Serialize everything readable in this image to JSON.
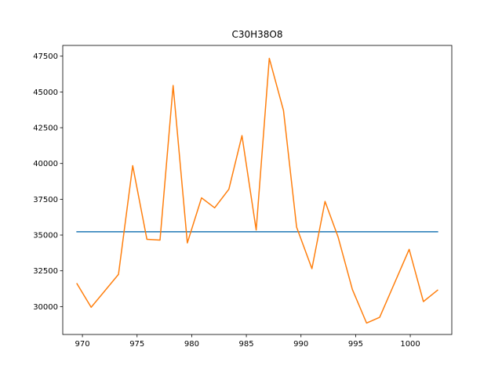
{
  "chart_data": {
    "type": "line",
    "title": "C30H38O8",
    "xlabel": "",
    "ylabel": "",
    "xlim": [
      968.2,
      1003.8
    ],
    "ylim": [
      28050,
      48250
    ],
    "xticks": [
      970,
      975,
      980,
      985,
      990,
      995,
      1000
    ],
    "yticks": [
      30000,
      32500,
      35000,
      37500,
      40000,
      42500,
      45000,
      47500
    ],
    "grid": false,
    "series": [
      {
        "color": "#1f77b4",
        "x": [
          969.5,
          1002.5
        ],
        "y": [
          35230,
          35230
        ]
      },
      {
        "color": "#ff7f0e",
        "x": [
          969.5,
          970.8,
          973.3,
          974.6,
          975.9,
          977.1,
          978.3,
          979.6,
          980.9,
          982.1,
          983.4,
          984.6,
          985.9,
          987.1,
          988.4,
          989.6,
          991.0,
          992.2,
          993.4,
          994.7,
          996.0,
          997.2,
          999.9,
          1001.2,
          1002.5
        ],
        "y": [
          31600,
          29950,
          32250,
          39850,
          34700,
          34650,
          45450,
          34450,
          37600,
          36900,
          38200,
          41950,
          35350,
          47350,
          43700,
          35550,
          32650,
          37350,
          34850,
          31200,
          28850,
          29250,
          34000,
          30350,
          31150
        ]
      }
    ]
  }
}
